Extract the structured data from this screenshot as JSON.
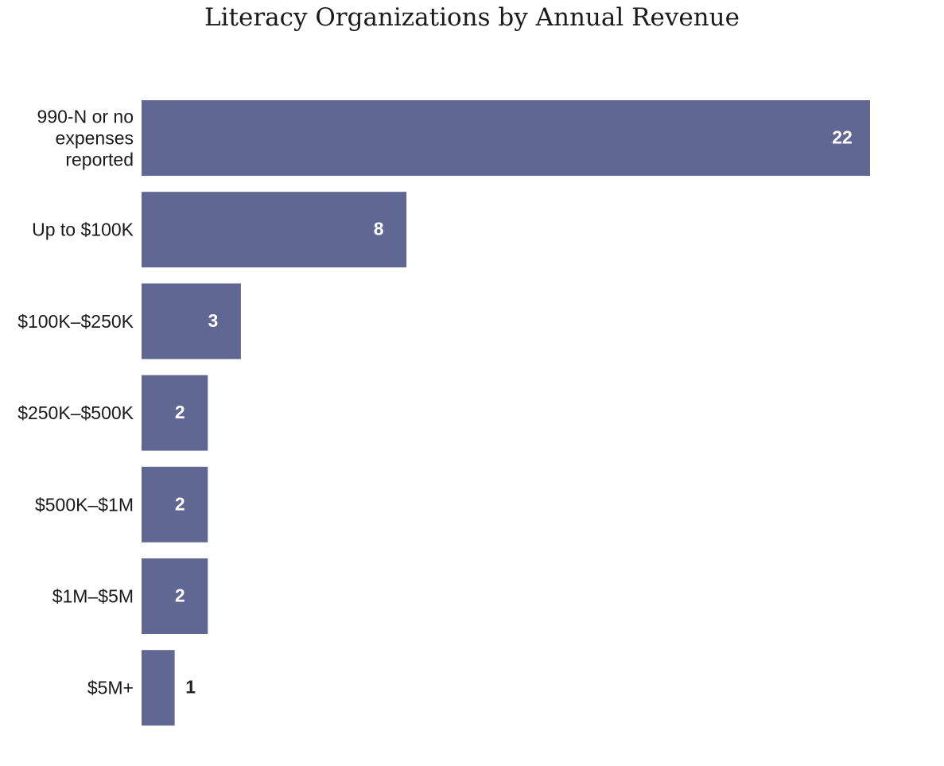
{
  "chart_data": {
    "type": "bar",
    "orientation": "horizontal",
    "title": "Literacy Organizations by Annual Revenue",
    "xlabel": "",
    "ylabel": "",
    "categories": [
      "990-N or no expenses reported",
      "Up to $100K",
      "$100K–$250K",
      "$250K–$500K",
      "$500K–$1M",
      "$1M–$5M",
      "$5M+"
    ],
    "category_lines": [
      [
        "990-N or no",
        "expenses",
        "reported"
      ],
      [
        "Up to $100K"
      ],
      [
        "$100K–$250K"
      ],
      [
        "$250K–$500K"
      ],
      [
        "$500K–$1M"
      ],
      [
        "$1M–$5M"
      ],
      [
        "$5M+"
      ]
    ],
    "values": [
      22,
      8,
      3,
      2,
      2,
      2,
      1
    ],
    "value_labels": [
      "22",
      "8",
      "3",
      "2",
      "2",
      "2",
      "1"
    ],
    "xlim": [
      0,
      22
    ],
    "grid": false,
    "legend": "none",
    "colors": {
      "bar": "#606792",
      "label_inside": "#ffffff",
      "label_outside": "#222222"
    }
  }
}
